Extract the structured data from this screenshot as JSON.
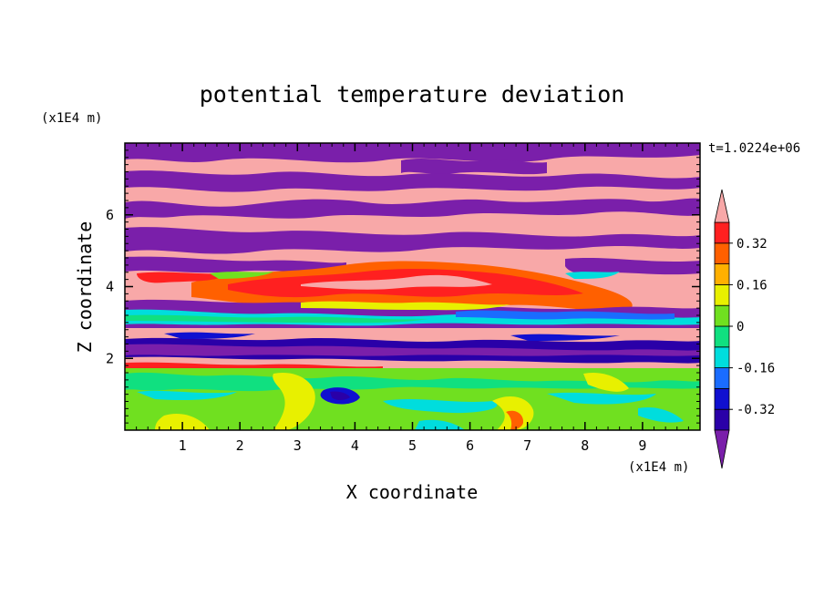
{
  "chart_data": {
    "type": "heatmap",
    "title": "potential temperature deviation",
    "xlabel": "X coordinate",
    "ylabel": "Z coordinate",
    "x_unit": "(x1E4 m)",
    "y_unit": "(x1E4 m)",
    "time_label": "t=1.0224e+06",
    "xlim": [
      0,
      10
    ],
    "ylim": [
      0,
      8
    ],
    "x_ticks": [
      1,
      2,
      3,
      4,
      5,
      6,
      7,
      8,
      9
    ],
    "y_ticks": [
      2,
      4,
      6
    ],
    "x_tick_labels": [
      "1",
      "2",
      "3",
      "4",
      "5",
      "6",
      "7",
      "8",
      "9"
    ],
    "y_tick_labels": [
      "2",
      "4",
      "6"
    ],
    "colorbar": {
      "extend": "both",
      "level_labels": [
        "0.32",
        "0.16",
        "0",
        "-0.16",
        "-0.32"
      ],
      "label_values": [
        0.32,
        0.16,
        0,
        -0.16,
        -0.32
      ],
      "levels": [
        -0.4,
        -0.32,
        -0.24,
        -0.16,
        -0.08,
        0,
        0.08,
        0.16,
        0.24,
        0.32,
        0.4
      ],
      "colors": [
        "#7a1faa",
        "#2a00a8",
        "#1010d0",
        "#1a6cff",
        "#00dddd",
        "#10e080",
        "#70e020",
        "#e8f000",
        "#ffb000",
        "#ff6000",
        "#ff2020",
        "#f8a8a8"
      ]
    },
    "layers": [
      {
        "z_range": [
          0,
          1.9
        ],
        "field": "mixed",
        "values": [
          -0.16,
          0.24
        ]
      },
      {
        "z_range": [
          1.9,
          2.6
        ],
        "field": "negative",
        "values": [
          -0.4,
          -0.16
        ]
      },
      {
        "z_range": [
          2.6,
          3.6
        ],
        "field": "mixed",
        "values": [
          -0.32,
          0.4
        ]
      },
      {
        "z_range": [
          3.6,
          4.8
        ],
        "field": "positive",
        "values": [
          0.16,
          0.4
        ]
      },
      {
        "z_range": [
          4.8,
          8.0
        ],
        "field": "banded",
        "values": [
          -0.4,
          0.4
        ]
      }
    ]
  }
}
